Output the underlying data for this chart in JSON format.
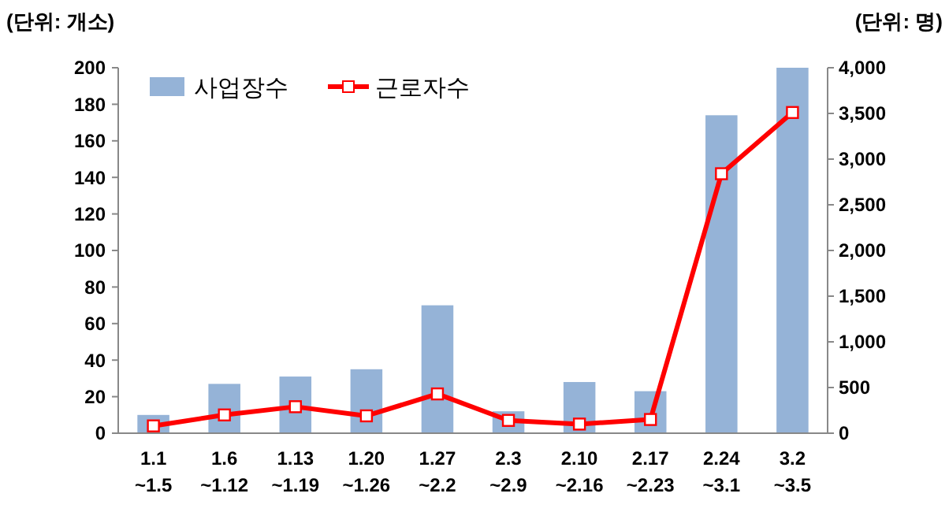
{
  "chart_data": {
    "type": "bar",
    "ylabel": "(단위: 개소)",
    "y2label": "(단위: 명)",
    "categories": [
      "1.1\n~1.5",
      "1.6\n~1.12",
      "1.13\n~1.19",
      "1.20\n~1.26",
      "1.27\n~2.2",
      "2.3\n~2.9",
      "2.10\n~2.16",
      "2.17\n~2.23",
      "2.24\n~3.1",
      "3.2\n~3.5"
    ],
    "series": [
      {
        "name": "사업장수",
        "color": "#95b3d7",
        "values": [
          10,
          27,
          31,
          35,
          70,
          12,
          28,
          23,
          174,
          200
        ]
      },
      {
        "name": "근로자수",
        "type": "line",
        "axis": "y2",
        "color": "#ff0000",
        "marker": "square",
        "values": [
          80,
          200,
          290,
          190,
          430,
          140,
          100,
          150,
          2840,
          3510
        ]
      }
    ],
    "ylim": [
      0,
      200
    ],
    "yticks": [
      0,
      20,
      40,
      60,
      80,
      100,
      120,
      140,
      160,
      180,
      200
    ],
    "y2lim": [
      0,
      4000
    ],
    "y2ticks": [
      {
        "value": 0,
        "label": "0"
      },
      {
        "value": 500,
        "label": "500"
      },
      {
        "value": 1000,
        "label": "1,000"
      },
      {
        "value": 1500,
        "label": "1,500"
      },
      {
        "value": 2000,
        "label": "2,000"
      },
      {
        "value": 2500,
        "label": "2,500"
      },
      {
        "value": 3000,
        "label": "3,000"
      },
      {
        "value": 3500,
        "label": "3,500"
      },
      {
        "value": 4000,
        "label": "4,000"
      }
    ],
    "grid": false,
    "legend": "top left"
  }
}
